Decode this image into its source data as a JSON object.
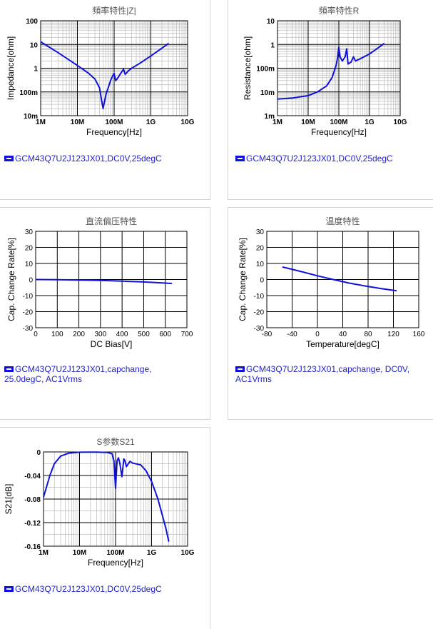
{
  "charts": [
    {
      "id": "impedance",
      "title": "頻率特性|Z|",
      "xlabel": "Frequency[Hz]",
      "ylabel": "Impedance[ohm]",
      "xtick_labels": [
        "1M",
        "10M",
        "100M",
        "1G",
        "10G"
      ],
      "ytick_labels": [
        "100",
        "10",
        "1",
        "100m",
        "10m"
      ],
      "legend": "GCM43Q7U2J123JX01,DC0V,25degC"
    },
    {
      "id": "resistance",
      "title": "頻率特性R",
      "xlabel": "Frequency[Hz]",
      "ylabel": "Resistance[ohm]",
      "xtick_labels": [
        "1M",
        "10M",
        "100M",
        "1G",
        "10G"
      ],
      "ytick_labels": [
        "10",
        "1",
        "100m",
        "10m",
        "1m"
      ],
      "legend": "GCM43Q7U2J123JX01,DC0V,25degC"
    },
    {
      "id": "dcbias",
      "title": "直流偏压特性",
      "xlabel": "DC Bias[V]",
      "ylabel": "Cap. Change Rate[%]",
      "xtick_labels": [
        "0",
        "100",
        "200",
        "300",
        "400",
        "500",
        "600",
        "700"
      ],
      "ytick_labels": [
        "30",
        "20",
        "10",
        "0",
        "-10",
        "-20",
        "-30"
      ],
      "legend": "GCM43Q7U2J123JX01,capchange, 25.0degC, AC1Vrms"
    },
    {
      "id": "temperature",
      "title": "温度特性",
      "xlabel": "Temperature[degC]",
      "ylabel": "Cap. Change Rate[%]",
      "xtick_labels": [
        "-80",
        "-40",
        "0",
        "40",
        "80",
        "120",
        "160"
      ],
      "ytick_labels": [
        "30",
        "20",
        "10",
        "0",
        "-10",
        "-20",
        "-30"
      ],
      "legend": "GCM43Q7U2J123JX01,capchange, DC0V, AC1Vrms"
    },
    {
      "id": "s21",
      "title": "S参数S21",
      "xlabel": "Frequency[Hz]",
      "ylabel": "S21[dB]",
      "xtick_labels": [
        "1M",
        "10M",
        "100M",
        "1G",
        "10G"
      ],
      "ytick_labels": [
        "0",
        "-0.04",
        "-0.08",
        "-0.12",
        "-0.16"
      ],
      "legend": "GCM43Q7U2J123JX01,DC0V,25degC"
    }
  ],
  "colors": {
    "series": "#1111dd",
    "grid_major": "#000000",
    "grid_minor": "#bbbbbb",
    "title": "#555555",
    "legend_text": "#2222cc"
  },
  "chart_data": [
    {
      "type": "line",
      "title": "頻率特性|Z|",
      "xlabel": "Frequency[Hz]",
      "ylabel": "Impedance[ohm]",
      "x_scale": "log",
      "y_scale": "log",
      "xlim": [
        1000000.0,
        10000000000.0
      ],
      "ylim": [
        0.01,
        100
      ],
      "series": [
        {
          "name": "GCM43Q7U2J123JX01,DC0V,25degC",
          "x": [
            1000000.0,
            3000000.0,
            10000000.0,
            20000000.0,
            30000000.0,
            40000000.0,
            45000000.0,
            50000000.0,
            60000000.0,
            70000000.0,
            80000000.0,
            90000000.0,
            100000000.0,
            110000000.0,
            120000000.0,
            150000000.0,
            180000000.0,
            200000000.0,
            250000000.0,
            300000000.0,
            500000000.0,
            1000000000.0,
            2000000000.0,
            3000000000.0
          ],
          "y": [
            13,
            4.5,
            1.3,
            0.62,
            0.35,
            0.15,
            0.05,
            0.02,
            0.08,
            0.16,
            0.3,
            0.45,
            0.6,
            0.3,
            0.35,
            0.6,
            0.9,
            0.55,
            0.8,
            1.0,
            1.6,
            3.3,
            7,
            11
          ]
        }
      ]
    },
    {
      "type": "line",
      "title": "頻率特性R",
      "xlabel": "Frequency[Hz]",
      "ylabel": "Resistance[ohm]",
      "x_scale": "log",
      "y_scale": "log",
      "xlim": [
        1000000.0,
        10000000000.0
      ],
      "ylim": [
        0.001,
        10
      ],
      "series": [
        {
          "name": "GCM43Q7U2J123JX01,DC0V,25degC",
          "x": [
            1000000.0,
            3000000.0,
            10000000.0,
            20000000.0,
            40000000.0,
            60000000.0,
            80000000.0,
            90000000.0,
            100000000.0,
            110000000.0,
            130000000.0,
            160000000.0,
            180000000.0,
            200000000.0,
            250000000.0,
            300000000.0,
            350000000.0,
            400000000.0,
            500000000.0,
            1000000000.0,
            2000000000.0,
            3000000000.0
          ],
          "y": [
            0.005,
            0.0055,
            0.007,
            0.01,
            0.018,
            0.04,
            0.12,
            0.25,
            0.75,
            0.3,
            0.2,
            0.3,
            0.65,
            0.15,
            0.18,
            0.3,
            0.2,
            0.22,
            0.25,
            0.4,
            0.75,
            1.1
          ]
        }
      ]
    },
    {
      "type": "line",
      "title": "直流偏压特性",
      "xlabel": "DC Bias[V]",
      "ylabel": "Cap. Change Rate[%]",
      "xlim": [
        0,
        700
      ],
      "ylim": [
        -30,
        30
      ],
      "series": [
        {
          "name": "GCM43Q7U2J123JX01,capchange, 25.0degC, AC1Vrms",
          "x": [
            0,
            100,
            200,
            300,
            400,
            500,
            600,
            630
          ],
          "y": [
            0,
            -0.1,
            -0.3,
            -0.6,
            -1.0,
            -1.5,
            -2.2,
            -2.5
          ]
        }
      ]
    },
    {
      "type": "line",
      "title": "温度特性",
      "xlabel": "Temperature[degC]",
      "ylabel": "Cap. Change Rate[%]",
      "xlim": [
        -80,
        160
      ],
      "ylim": [
        -30,
        30
      ],
      "series": [
        {
          "name": "GCM43Q7U2J123JX01,capchange, DC0V, AC1Vrms",
          "x": [
            -55,
            -25,
            0,
            25,
            50,
            75,
            100,
            125
          ],
          "y": [
            7.8,
            4.9,
            2.3,
            0,
            -2.2,
            -4.0,
            -5.6,
            -7.0
          ]
        }
      ]
    },
    {
      "type": "line",
      "title": "S参数S21",
      "xlabel": "Frequency[Hz]",
      "ylabel": "S21[dB]",
      "x_scale": "log",
      "xlim": [
        1000000.0,
        10000000000.0
      ],
      "ylim": [
        -0.16,
        0
      ],
      "series": [
        {
          "name": "GCM43Q7U2J123JX01,DC0V,25degC",
          "x": [
            1000000.0,
            1500000.0,
            2000000.0,
            3000000.0,
            5000000.0,
            10000000.0,
            30000000.0,
            60000000.0,
            80000000.0,
            90000000.0,
            100000000.0,
            110000000.0,
            120000000.0,
            130000000.0,
            150000000.0,
            170000000.0,
            180000000.0,
            200000000.0,
            250000000.0,
            300000000.0,
            500000000.0,
            700000000.0,
            1000000000.0,
            1500000000.0,
            2000000000.0,
            2500000000.0,
            3000000000.0
          ],
          "y": [
            -0.077,
            -0.04,
            -0.02,
            -0.007,
            -0.002,
            -0.0005,
            -0.0003,
            -0.001,
            -0.003,
            -0.015,
            -0.062,
            -0.015,
            -0.01,
            -0.018,
            -0.042,
            -0.012,
            -0.014,
            -0.025,
            -0.016,
            -0.019,
            -0.022,
            -0.032,
            -0.05,
            -0.08,
            -0.108,
            -0.13,
            -0.152
          ]
        }
      ]
    }
  ]
}
